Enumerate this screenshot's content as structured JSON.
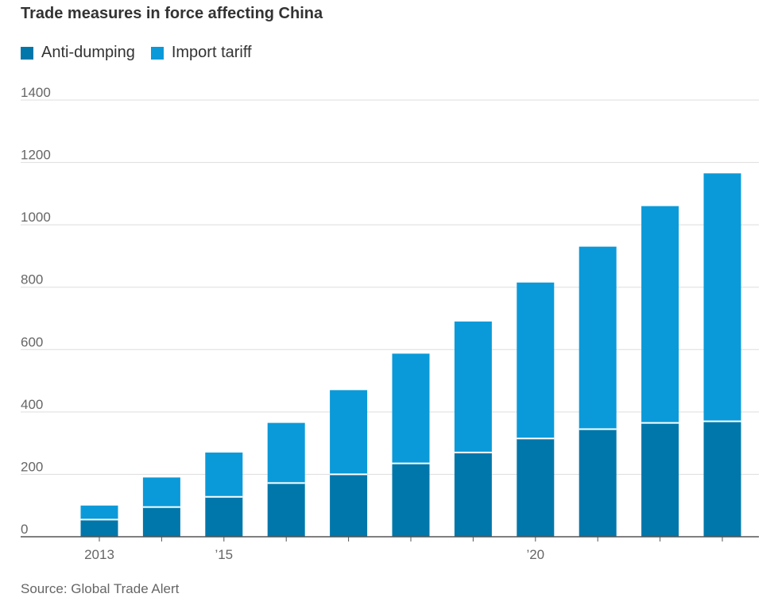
{
  "source": "Source: Global Trade Alert",
  "legend": [
    {
      "label": "Anti-dumping",
      "color": "#0077aa"
    },
    {
      "label": "Import tariff",
      "color": "#0a9ad9"
    }
  ],
  "chart_data": {
    "type": "bar",
    "stacked": true,
    "title": "Trade measures in force affecting China",
    "categories": [
      "2013",
      "2014",
      "2015",
      "2016",
      "2017",
      "2018",
      "2019",
      "2020",
      "2021",
      "2022",
      "2023"
    ],
    "x_tick_labels": [
      {
        "category": "2013",
        "label": "2013"
      },
      {
        "category": "2015",
        "label": "’15"
      },
      {
        "category": "2020",
        "label": "’20"
      }
    ],
    "series": [
      {
        "name": "Anti-dumping",
        "color": "#0077aa",
        "values": [
          55,
          95,
          128,
          172,
          200,
          235,
          270,
          315,
          345,
          365,
          370
        ]
      },
      {
        "name": "Import tariff",
        "color": "#0a9ad9",
        "values": [
          45,
          95,
          142,
          193,
          270,
          352,
          420,
          500,
          585,
          695,
          795
        ]
      }
    ],
    "ylim": [
      0,
      1400
    ],
    "y_ticks": [
      0,
      200,
      400,
      600,
      800,
      1000,
      1200,
      1400
    ],
    "grid": true,
    "legend_position": "top-left"
  }
}
